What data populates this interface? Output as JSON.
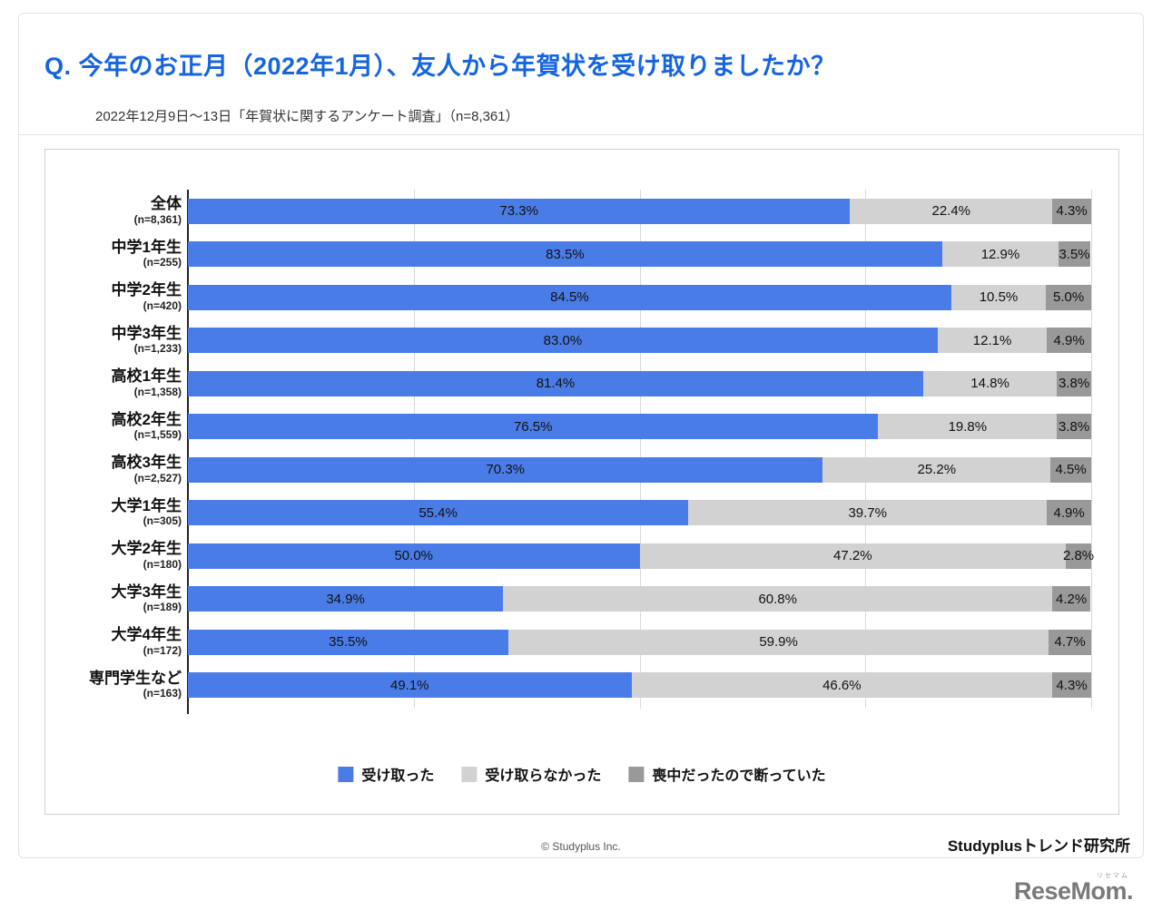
{
  "header": {
    "title": "Q. 今年のお正月（2022年1月）、友人から年賀状を受け取りましたか？",
    "subtitle": "2022年12月9日〜13日「年賀状に関するアンケート調査」（n=8,361）"
  },
  "chart_data": {
    "type": "bar",
    "orientation": "horizontal",
    "stacked": true,
    "unit": "%",
    "xlim": [
      0,
      100
    ],
    "gridlines": [
      0,
      25,
      50,
      75,
      100
    ],
    "grid": true,
    "legend_position": "bottom",
    "categories": [
      "全体",
      "中学1年生",
      "中学2年生",
      "中学3年生",
      "高校1年生",
      "高校2年生",
      "高校3年生",
      "大学1年生",
      "大学2年生",
      "大学3年生",
      "大学4年生",
      "専門学生など"
    ],
    "category_ns": [
      "(n=8,361)",
      "(n=255)",
      "(n=420)",
      "(n=1,233)",
      "(n=1,358)",
      "(n=1,559)",
      "(n=2,527)",
      "(n=305)",
      "(n=180)",
      "(n=189)",
      "(n=172)",
      "(n=163)"
    ],
    "series": [
      {
        "name": "受け取った",
        "color": "#4a7ce8",
        "values": [
          73.3,
          83.5,
          84.5,
          83.0,
          81.4,
          76.5,
          70.3,
          55.4,
          50.0,
          34.9,
          35.5,
          49.1
        ]
      },
      {
        "name": "受け取らなかった",
        "color": "#d2d2d2",
        "values": [
          22.4,
          12.9,
          10.5,
          12.1,
          14.8,
          19.8,
          25.2,
          39.7,
          47.2,
          60.8,
          59.9,
          46.6
        ]
      },
      {
        "name": "喪中だったので断っていた",
        "color": "#999999",
        "values": [
          4.3,
          3.5,
          5.0,
          4.9,
          3.8,
          3.8,
          4.5,
          4.9,
          2.8,
          4.2,
          4.7,
          4.3
        ]
      }
    ]
  },
  "footer": {
    "copyright": "© Studyplus Inc.",
    "brand": "Studyplusトレンド研究所"
  },
  "logo": {
    "text": "ReseMom.",
    "sub": "リセマム"
  }
}
